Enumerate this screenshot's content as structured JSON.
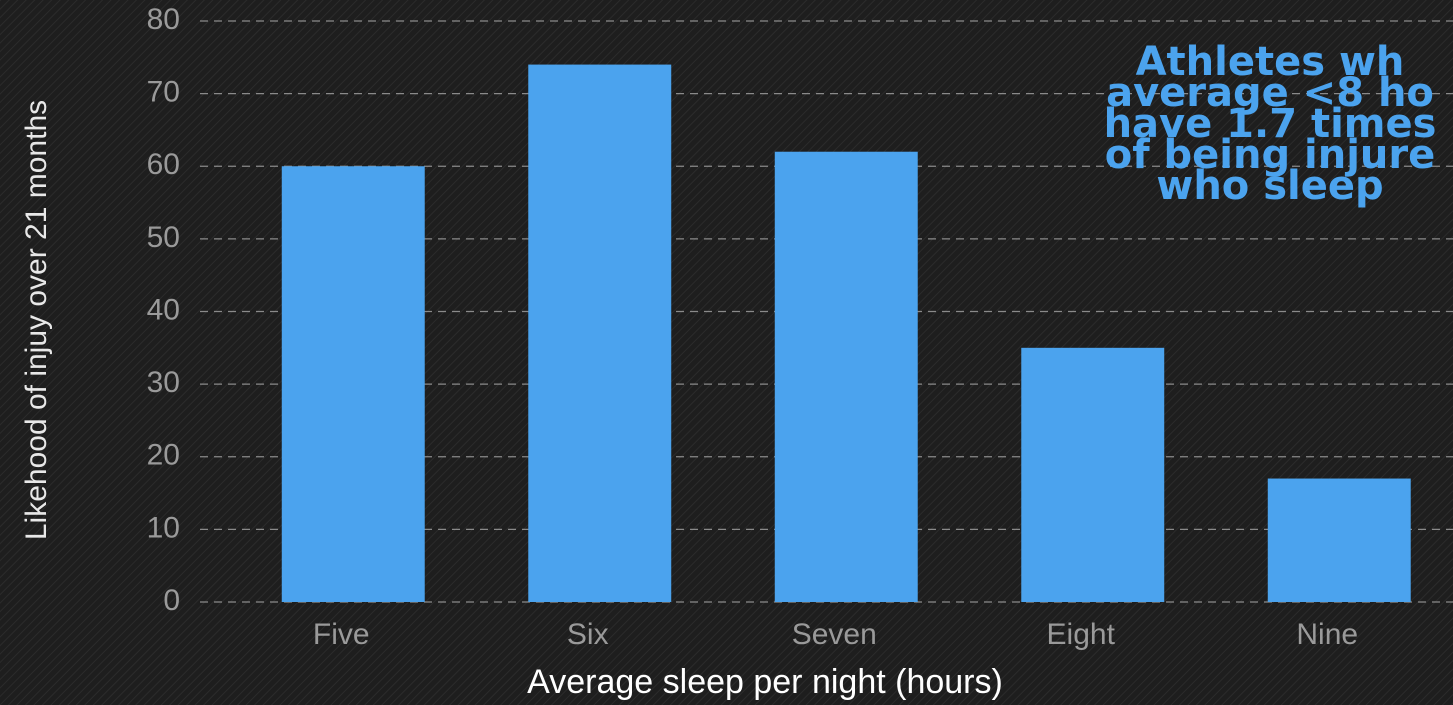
{
  "chart_data": {
    "type": "bar",
    "categories": [
      "Five",
      "Six",
      "Seven",
      "Eight",
      "Nine"
    ],
    "values": [
      60,
      74,
      62,
      35,
      17
    ],
    "color": "#4ba3ee",
    "x_label": "Average sleep per night (hours)",
    "y_label": "Likehood of injuy over 21 months",
    "ylim": [
      0,
      80
    ],
    "yticks": [
      0,
      10,
      20,
      30,
      40,
      50,
      60,
      70,
      80
    ],
    "grid": true,
    "annotation": [
      "Athletes wh",
      "average <8 ho",
      "have 1.7 times",
      "of being injure",
      "who sleep"
    ]
  }
}
